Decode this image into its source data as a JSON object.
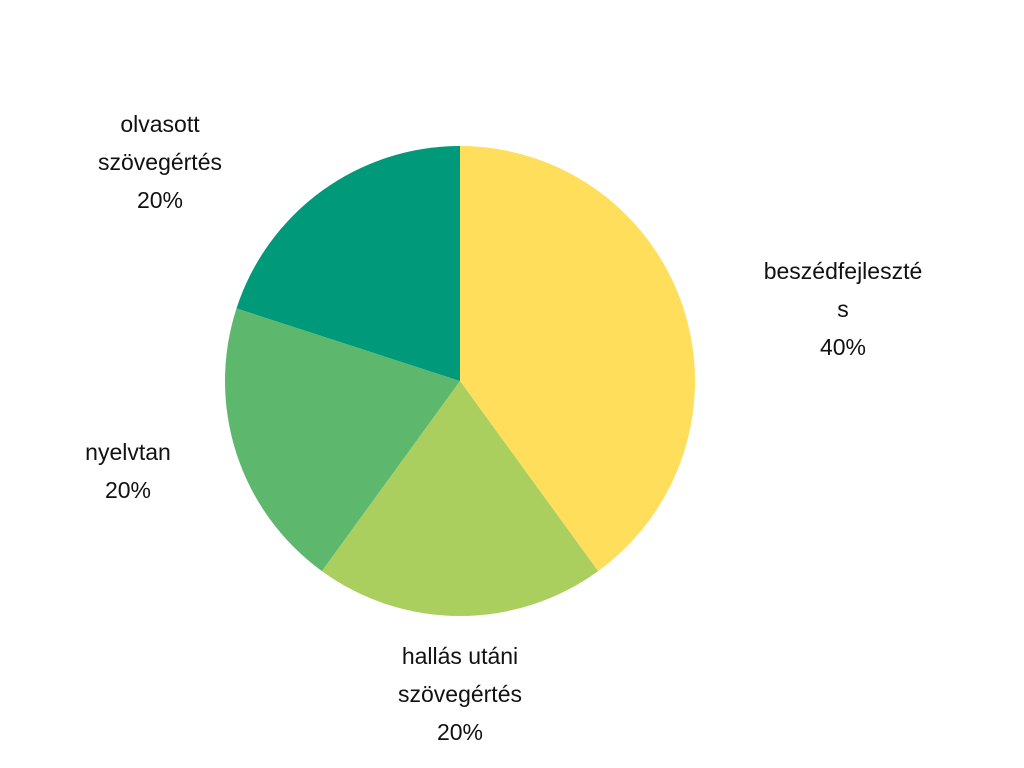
{
  "chart_data": {
    "type": "pie",
    "start_angle_deg": 0,
    "direction": "clockwise",
    "slices": [
      {
        "label_lines": [
          "beszédfejleszté",
          "s"
        ],
        "percent_text": "40%",
        "value": 40,
        "color": "#FFDE5C"
      },
      {
        "label_lines": [
          "hallás utáni",
          "szövegértés"
        ],
        "percent_text": "20%",
        "value": 20,
        "color": "#ABCF5E"
      },
      {
        "label_lines": [
          "nyelvtan"
        ],
        "percent_text": "20%",
        "value": 20,
        "color": "#5DB86E"
      },
      {
        "label_lines": [
          "olvasott",
          "szövegértés"
        ],
        "percent_text": "20%",
        "value": 20,
        "color": "#00997A"
      }
    ]
  }
}
